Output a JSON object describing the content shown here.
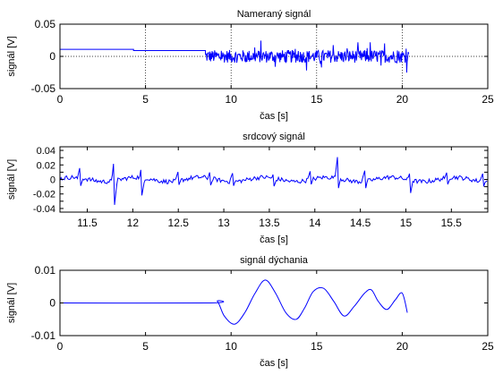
{
  "chart_data": [
    {
      "type": "line",
      "title": "Nameraný signál",
      "xlabel": "čas [s]",
      "ylabel": "signál [V]",
      "xlim": [
        0,
        25
      ],
      "ylim": [
        -0.05,
        0.05
      ],
      "x_ticks": [
        0,
        5,
        10,
        15,
        20,
        25
      ],
      "x_tick_labels": [
        "0",
        "5",
        "10",
        "15",
        "20",
        "25"
      ],
      "y_ticks": [
        -0.05,
        0,
        0.05
      ],
      "y_tick_labels": [
        "-0.05",
        "0",
        "0.05"
      ],
      "grid": "dotted",
      "line_color": "#0000ff",
      "series": [
        {
          "segments": [
            {
              "kind": "flat",
              "x": [
                0,
                4.3
              ],
              "y": 0.011
            },
            {
              "kind": "flat",
              "x": [
                4.3,
                8.5
              ],
              "y": 0.009
            },
            {
              "kind": "noise",
              "x": [
                8.5,
                20.4
              ],
              "center": 0,
              "amplitude": 0.022
            }
          ]
        }
      ]
    },
    {
      "type": "line",
      "title": "srdcový signál",
      "xlabel": "čas [s]",
      "ylabel": "signál [V]",
      "xlim": [
        11.2,
        15.9
      ],
      "ylim": [
        -0.045,
        0.045
      ],
      "x_ticks": [
        11.5,
        12,
        12.5,
        13,
        13.5,
        14,
        14.5,
        15,
        15.5
      ],
      "x_tick_labels": [
        "11.5",
        "12",
        "12.5",
        "13",
        "13.5",
        "14",
        "14.5",
        "15",
        "15.5"
      ],
      "y_ticks": [
        -0.04,
        -0.03,
        -0.02,
        -0.01,
        0,
        0.01,
        0.02,
        0.03,
        0.04
      ],
      "y_tick_labels": [
        "-0.04",
        "-0.02",
        "0",
        "0.02",
        "0.04"
      ],
      "y_tick_labels_at": [
        -0.04,
        -0.02,
        0,
        0.02,
        0.04
      ],
      "grid": "none",
      "line_color": "#0000ff",
      "series": [
        {
          "noise_amplitude": 0.006,
          "spikes": [
            {
              "x": 11.42,
              "peak": 0.018,
              "trough": -0.012
            },
            {
              "x": 11.8,
              "peak": 0.036,
              "trough": -0.035
            },
            {
              "x": 12.1,
              "peak": 0.022,
              "trough": -0.022
            },
            {
              "x": 12.5,
              "peak": 0.012,
              "trough": -0.01
            },
            {
              "x": 12.85,
              "peak": 0.012,
              "trough": -0.01
            },
            {
              "x": 13.1,
              "peak": 0.01,
              "trough": -0.012
            },
            {
              "x": 13.55,
              "peak": 0.01,
              "trough": -0.01
            },
            {
              "x": 13.95,
              "peak": 0.012,
              "trough": -0.01
            },
            {
              "x": 14.25,
              "peak": 0.033,
              "trough": -0.018
            },
            {
              "x": 14.55,
              "peak": 0.013,
              "trough": -0.018
            },
            {
              "x": 15.05,
              "peak": 0.012,
              "trough": -0.02
            },
            {
              "x": 15.45,
              "peak": 0.01,
              "trough": -0.01
            },
            {
              "x": 15.85,
              "peak": 0.01,
              "trough": -0.012
            }
          ]
        }
      ]
    },
    {
      "type": "line",
      "title": "signál dýchania",
      "xlabel": "čas [s]",
      "ylabel": "signál [V]",
      "xlim": [
        0,
        25
      ],
      "ylim": [
        -0.01,
        0.01
      ],
      "x_ticks": [
        0,
        5,
        10,
        15,
        20,
        25
      ],
      "x_tick_labels": [
        "0",
        "5",
        "10",
        "15",
        "20",
        "25"
      ],
      "y_ticks": [
        -0.01,
        0,
        0.01
      ],
      "y_tick_labels": [
        "-0.01",
        "0",
        "0.01"
      ],
      "grid": "none",
      "line_color": "#0000ff",
      "series": [
        {
          "x": [
            0,
            8.8,
            9.2,
            9.6,
            10.2,
            10.8,
            11.4,
            12.0,
            12.6,
            13.2,
            13.8,
            14.3,
            14.8,
            15.4,
            16.0,
            16.6,
            17.2,
            17.8,
            18.2,
            18.6,
            19.1,
            19.6,
            20.0,
            20.3
          ],
          "y": [
            0,
            0,
            0.0005,
            -0.004,
            -0.0065,
            -0.003,
            0.003,
            0.007,
            0.003,
            -0.003,
            -0.005,
            -0.0015,
            0.0035,
            0.0045,
            0.0005,
            -0.004,
            -0.001,
            0.003,
            0.004,
            0.0005,
            -0.002,
            0.001,
            0.003,
            -0.003
          ]
        }
      ]
    }
  ]
}
